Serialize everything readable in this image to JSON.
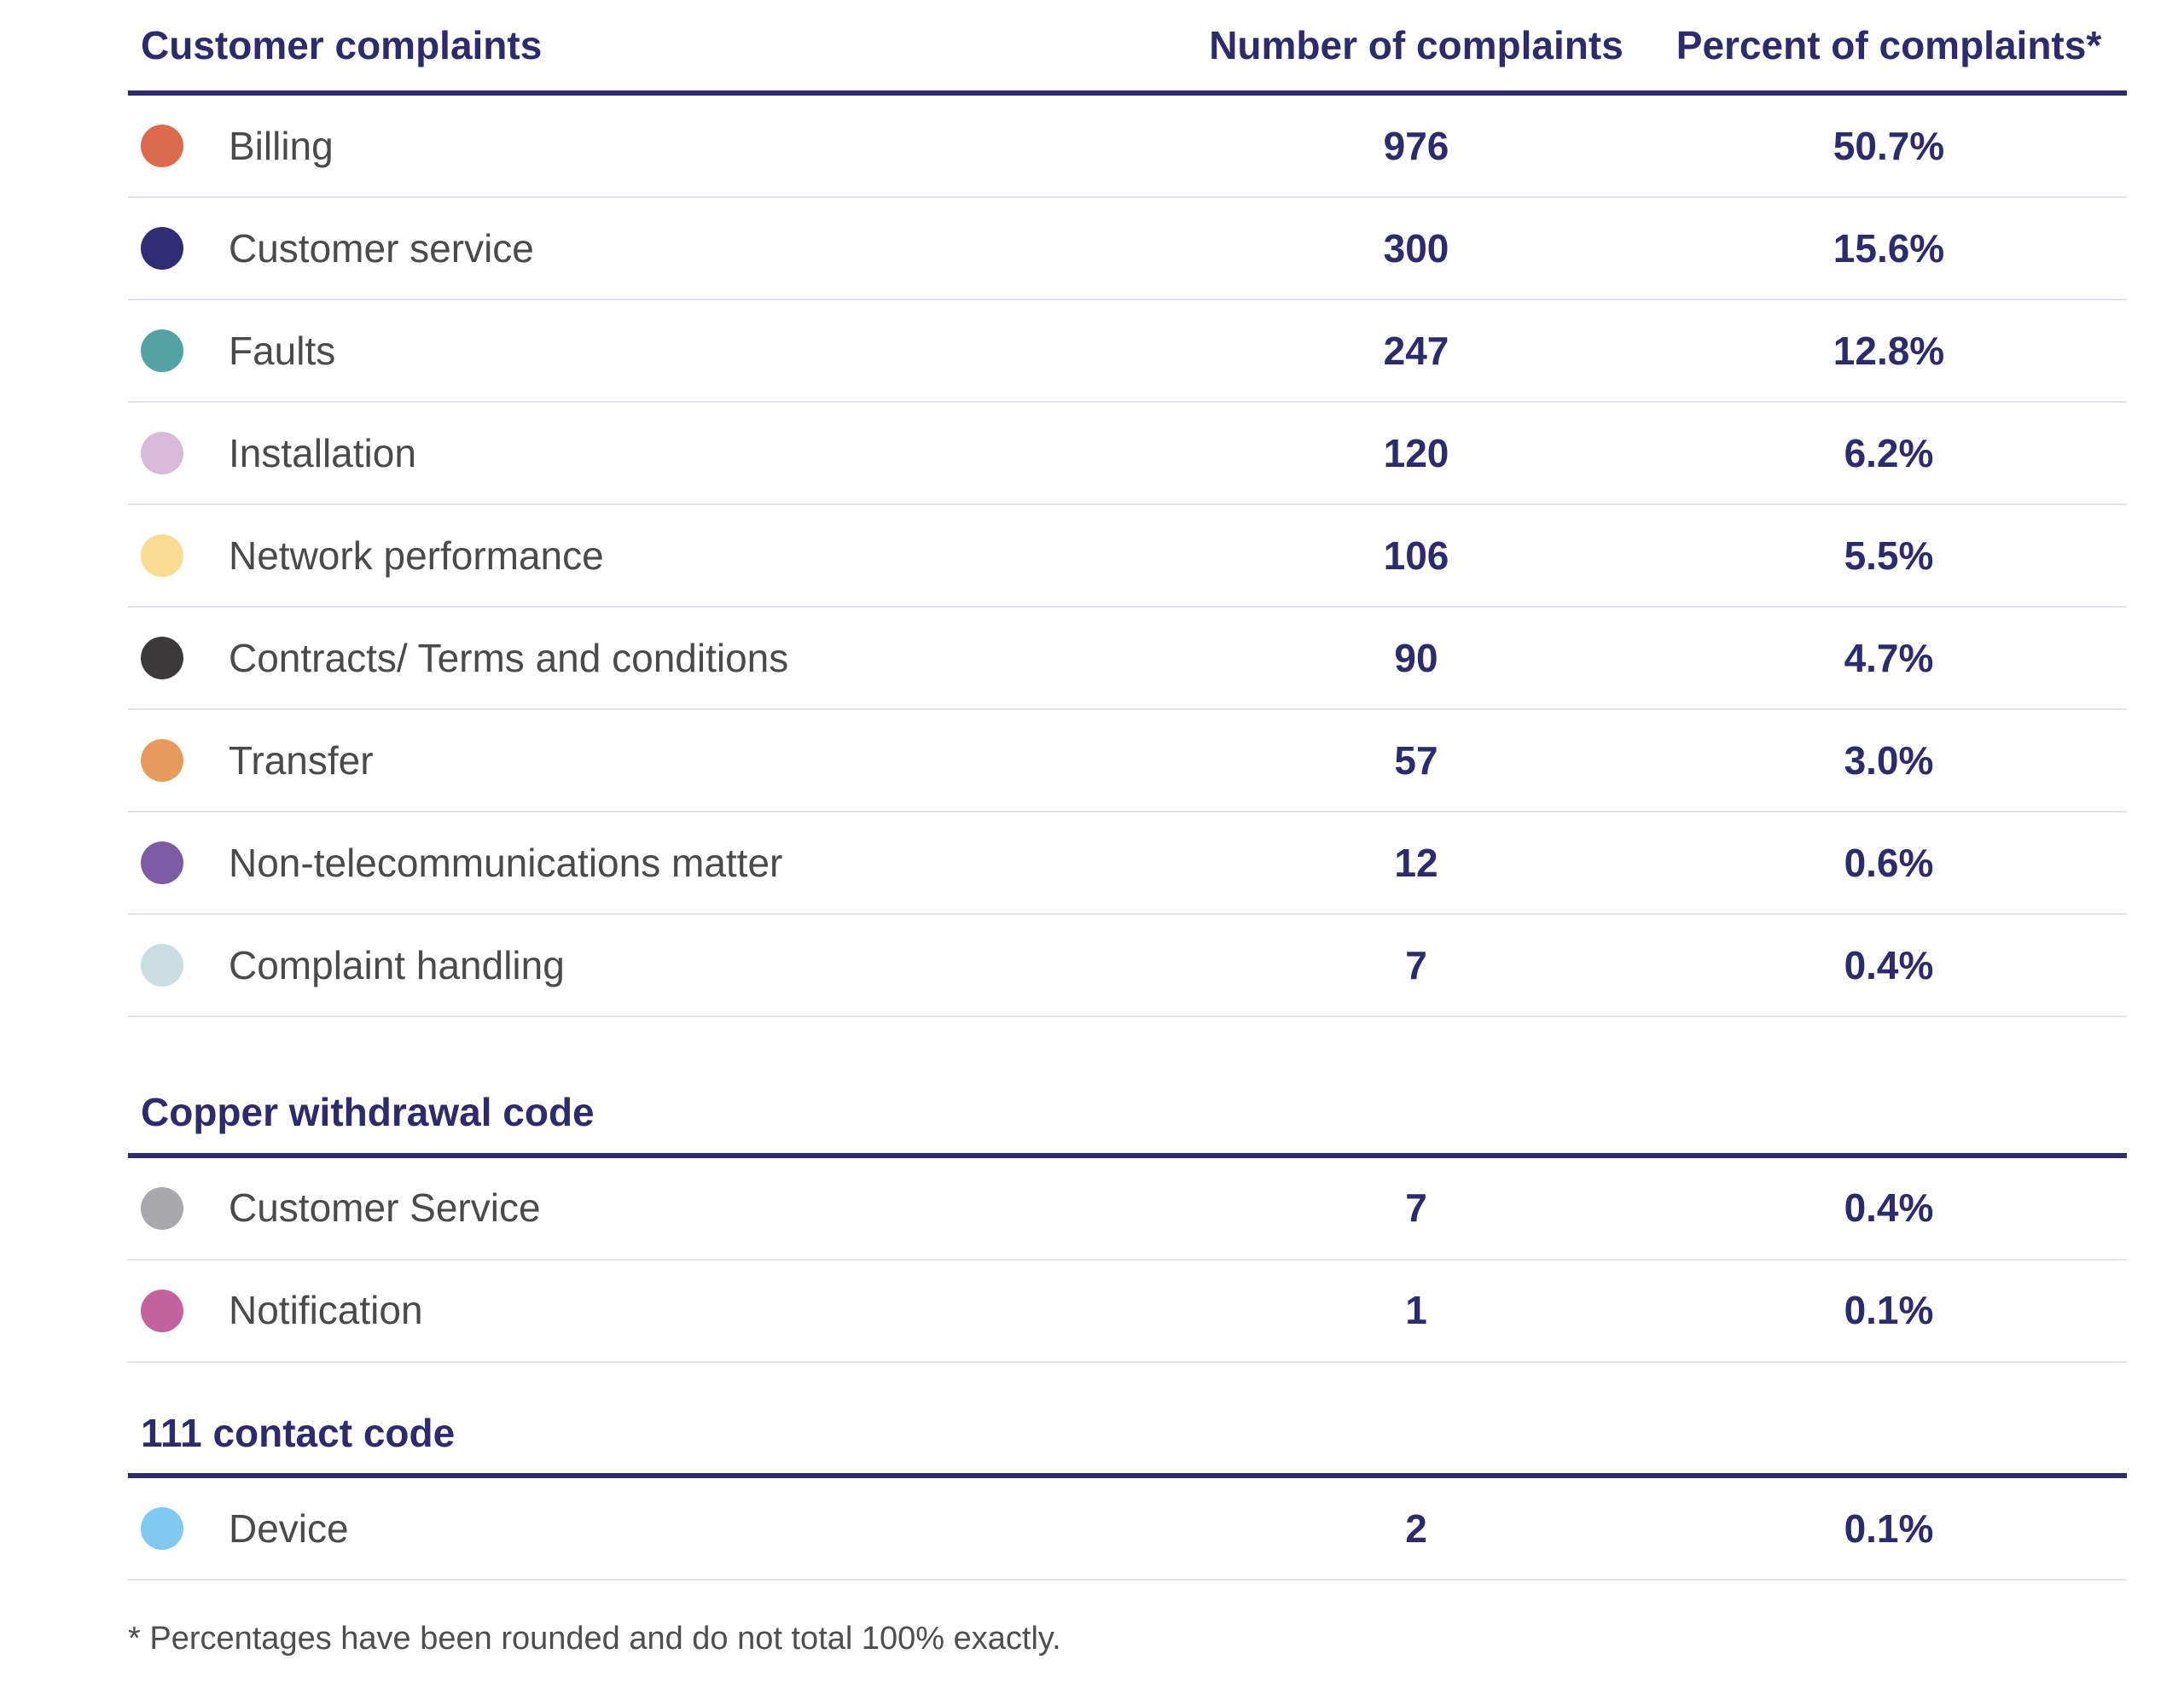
{
  "header": {
    "customer_complaints": "Customer complaints",
    "number_of_complaints": "Number of complaints",
    "percent_of_complaints": "Percent of complaints*"
  },
  "sections": [
    {
      "heading": null,
      "rows": [
        {
          "label": "Billing",
          "count": "976",
          "percent": "50.7%",
          "dot_color": "#dc6a4d"
        },
        {
          "label": "Customer service",
          "count": "300",
          "percent": "15.6%",
          "dot_color": "#322c75"
        },
        {
          "label": "Faults",
          "count": "247",
          "percent": "12.8%",
          "dot_color": "#53a2a4"
        },
        {
          "label": "Installation",
          "count": "120",
          "percent": "6.2%",
          "dot_color": "#dab8d7"
        },
        {
          "label": "Network performance",
          "count": "106",
          "percent": "5.5%",
          "dot_color": "#f8dc92"
        },
        {
          "label": "Contracts/ Terms and conditions",
          "count": "90",
          "percent": "4.7%",
          "dot_color": "#3c393b"
        },
        {
          "label": "Transfer",
          "count": "57",
          "percent": "3.0%",
          "dot_color": "#e69a5c"
        },
        {
          "label": "Non-telecommunications matter",
          "count": "12",
          "percent": "0.6%",
          "dot_color": "#7b5ca5"
        },
        {
          "label": "Complaint handling",
          "count": "7",
          "percent": "0.4%",
          "dot_color": "#c8dee1"
        }
      ]
    },
    {
      "heading": "Copper withdrawal code",
      "rows": [
        {
          "label": "Customer Service",
          "count": "7",
          "percent": "0.4%",
          "dot_color": "#a8a7ab"
        },
        {
          "label": "Notification",
          "count": "1",
          "percent": "0.1%",
          "dot_color": "#c4629d"
        }
      ]
    },
    {
      "heading": "111 contact code",
      "rows": [
        {
          "label": "Device",
          "count": "2",
          "percent": "0.1%",
          "dot_color": "#80c9f1"
        }
      ]
    }
  ],
  "footnote": "* Percentages have been rounded and do not total 100% exactly.",
  "colors": {
    "navy": "#2e2a6e",
    "separator": "#e3e3ea",
    "label_gray": "#4a4a4c"
  },
  "chart_data": {
    "type": "table",
    "title": "Customer complaints",
    "columns": [
      "Customer complaints",
      "Number of complaints",
      "Percent of complaints*"
    ],
    "sections": [
      {
        "name": "Customer complaints",
        "rows": [
          {
            "category": "Billing",
            "number": 976,
            "percent": 50.7
          },
          {
            "category": "Customer service",
            "number": 300,
            "percent": 15.6
          },
          {
            "category": "Faults",
            "number": 247,
            "percent": 12.8
          },
          {
            "category": "Installation",
            "number": 120,
            "percent": 6.2
          },
          {
            "category": "Network performance",
            "number": 106,
            "percent": 5.5
          },
          {
            "category": "Contracts/ Terms and conditions",
            "number": 90,
            "percent": 4.7
          },
          {
            "category": "Transfer",
            "number": 57,
            "percent": 3.0
          },
          {
            "category": "Non-telecommunications matter",
            "number": 12,
            "percent": 0.6
          },
          {
            "category": "Complaint handling",
            "number": 7,
            "percent": 0.4
          }
        ]
      },
      {
        "name": "Copper withdrawal code",
        "rows": [
          {
            "category": "Customer Service",
            "number": 7,
            "percent": 0.4
          },
          {
            "category": "Notification",
            "number": 1,
            "percent": 0.1
          }
        ]
      },
      {
        "name": "111 contact code",
        "rows": [
          {
            "category": "Device",
            "number": 2,
            "percent": 0.1
          }
        ]
      }
    ],
    "footnote": "* Percentages have been rounded and do not total 100% exactly."
  }
}
